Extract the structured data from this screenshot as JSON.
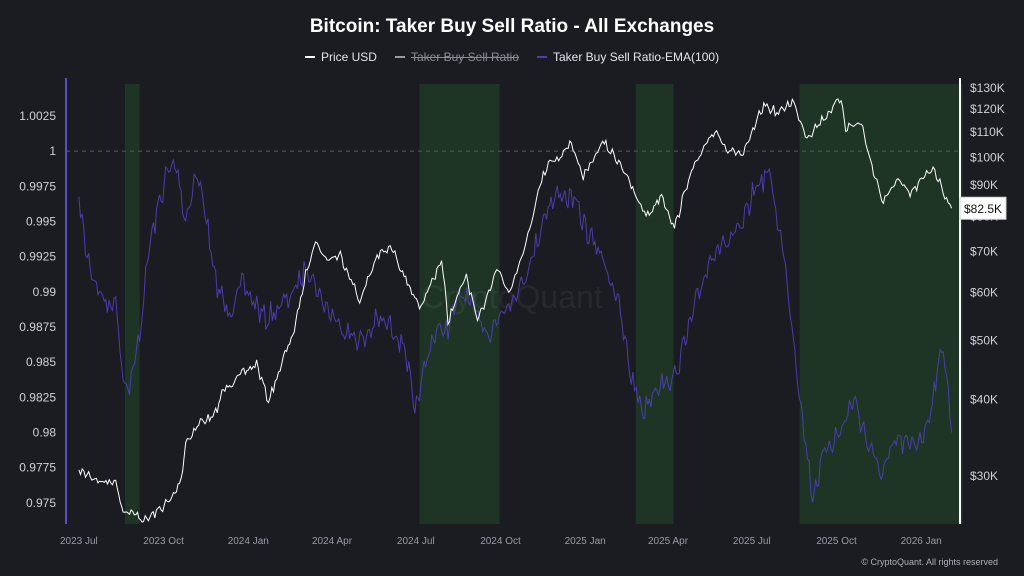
{
  "title": "Bitcoin: Taker Buy Sell Ratio - All Exchanges",
  "legend": [
    {
      "label": "Price USD",
      "color": "#ffffff",
      "hidden": false
    },
    {
      "label": "Taker Buy Sell Ratio",
      "color": "#9a9aa6",
      "hidden": true
    },
    {
      "label": "Taker Buy Sell Ratio-EMA(100)",
      "color": "#4d3fb3",
      "hidden": false
    }
  ],
  "watermark": "CryptoQuant",
  "footer": "© CryptoQuant. All rights reserved",
  "colors": {
    "background": "#1b1b22",
    "price": "#ffffff",
    "ratio": "#4d3fb3",
    "highlight": "#1f3a26",
    "reference": "#5a5a66"
  },
  "chart_data": {
    "type": "line",
    "x_ticks": [
      "2023 Jul",
      "2023 Oct",
      "2024 Jan",
      "2024 Apr",
      "2024 Jul",
      "2024 Oct",
      "2025 Jan",
      "2025 Apr",
      "2025 Jul",
      "2025 Oct",
      "2026 Jan"
    ],
    "left_axis": {
      "label": "",
      "ticks": [
        "1.0025",
        "1",
        "0.9975",
        "0.995",
        "0.9925",
        "0.99",
        "0.9875",
        "0.985",
        "0.9825",
        "0.98",
        "0.9775",
        "0.975"
      ],
      "range": [
        0.9735,
        1.0052
      ]
    },
    "right_axis": {
      "label": "",
      "scale": "log",
      "ticks": [
        "$130K",
        "$120K",
        "$110K",
        "$100K",
        "$90K",
        "$80K",
        "$70K",
        "$60K",
        "$50K",
        "$40K",
        "$30K"
      ],
      "range": [
        25000,
        135000
      ],
      "current_value_label": "$82.5K"
    },
    "reference_line": 1,
    "highlight_periods": [
      [
        "2023-08-20",
        "2023-09-05"
      ],
      [
        "2024-07-05",
        "2024-09-30"
      ],
      [
        "2025-02-25",
        "2025-04-07"
      ],
      [
        "2025-08-22",
        "2026-02-15"
      ]
    ],
    "series": [
      {
        "name": "Price USD",
        "axis": "right",
        "points": [
          [
            "2023-07-01",
            30500
          ],
          [
            "2023-07-10",
            30200
          ],
          [
            "2023-07-25",
            29300
          ],
          [
            "2023-08-10",
            29400
          ],
          [
            "2023-08-18",
            26300
          ],
          [
            "2023-09-01",
            25900
          ],
          [
            "2023-09-11",
            25300
          ],
          [
            "2023-09-25",
            26300
          ],
          [
            "2023-10-10",
            27500
          ],
          [
            "2023-10-20",
            29600
          ],
          [
            "2023-10-25",
            34000
          ],
          [
            "2023-11-10",
            36800
          ],
          [
            "2023-11-25",
            37500
          ],
          [
            "2023-12-05",
            41500
          ],
          [
            "2023-12-20",
            43500
          ],
          [
            "2024-01-10",
            45800
          ],
          [
            "2024-01-23",
            39800
          ],
          [
            "2024-02-10",
            47500
          ],
          [
            "2024-02-20",
            52000
          ],
          [
            "2024-03-05",
            66000
          ],
          [
            "2024-03-14",
            73000
          ],
          [
            "2024-03-25",
            68000
          ],
          [
            "2024-04-10",
            69000
          ],
          [
            "2024-04-20",
            64000
          ],
          [
            "2024-05-01",
            58000
          ],
          [
            "2024-05-20",
            69000
          ],
          [
            "2024-06-05",
            71000
          ],
          [
            "2024-06-25",
            61000
          ],
          [
            "2024-07-05",
            56000
          ],
          [
            "2024-07-29",
            68000
          ],
          [
            "2024-08-05",
            54000
          ],
          [
            "2024-08-25",
            64000
          ],
          [
            "2024-09-06",
            53500
          ],
          [
            "2024-09-27",
            66000
          ],
          [
            "2024-10-10",
            60000
          ],
          [
            "2024-10-29",
            72500
          ],
          [
            "2024-11-11",
            88000
          ],
          [
            "2024-11-22",
            98500
          ],
          [
            "2024-12-05",
            100000
          ],
          [
            "2024-12-17",
            106000
          ],
          [
            "2024-12-30",
            92500
          ],
          [
            "2025-01-20",
            106000
          ],
          [
            "2025-02-10",
            97000
          ],
          [
            "2025-02-25",
            86000
          ],
          [
            "2025-03-10",
            80000
          ],
          [
            "2025-03-25",
            87000
          ],
          [
            "2025-04-08",
            76500
          ],
          [
            "2025-04-25",
            94000
          ],
          [
            "2025-05-10",
            103000
          ],
          [
            "2025-05-22",
            111000
          ],
          [
            "2025-06-05",
            103000
          ],
          [
            "2025-06-22",
            101000
          ],
          [
            "2025-07-14",
            122000
          ],
          [
            "2025-07-30",
            118000
          ],
          [
            "2025-08-14",
            124000
          ],
          [
            "2025-08-30",
            108000
          ],
          [
            "2025-09-15",
            115000
          ],
          [
            "2025-10-06",
            125000
          ],
          [
            "2025-10-11",
            112000
          ],
          [
            "2025-10-28",
            114000
          ],
          [
            "2025-11-05",
            101000
          ],
          [
            "2025-11-21",
            84000
          ],
          [
            "2025-12-05",
            92000
          ],
          [
            "2025-12-20",
            87000
          ],
          [
            "2026-01-14",
            96500
          ],
          [
            "2026-01-25",
            88000
          ],
          [
            "2026-02-03",
            82500
          ]
        ]
      },
      {
        "name": "Taker Buy Sell Ratio-EMA(100)",
        "axis": "left",
        "points": [
          [
            "2023-07-01",
            0.9965
          ],
          [
            "2023-07-10",
            0.9925
          ],
          [
            "2023-07-20",
            0.9905
          ],
          [
            "2023-08-01",
            0.989
          ],
          [
            "2023-08-10",
            0.9895
          ],
          [
            "2023-08-18",
            0.984
          ],
          [
            "2023-08-25",
            0.983
          ],
          [
            "2023-09-05",
            0.987
          ],
          [
            "2023-09-15",
            0.993
          ],
          [
            "2023-09-25",
            0.996
          ],
          [
            "2023-10-05",
            0.9985
          ],
          [
            "2023-10-15",
            0.999
          ],
          [
            "2023-10-25",
            0.995
          ],
          [
            "2023-11-05",
            0.9985
          ],
          [
            "2023-11-15",
            0.996
          ],
          [
            "2023-11-25",
            0.991
          ],
          [
            "2023-12-10",
            0.9885
          ],
          [
            "2023-12-25",
            0.9905
          ],
          [
            "2024-01-05",
            0.9895
          ],
          [
            "2024-01-20",
            0.988
          ],
          [
            "2024-02-05",
            0.989
          ],
          [
            "2024-02-20",
            0.99
          ],
          [
            "2024-03-05",
            0.992
          ],
          [
            "2024-03-20",
            0.9895
          ],
          [
            "2024-04-05",
            0.988
          ],
          [
            "2024-04-20",
            0.987
          ],
          [
            "2024-05-05",
            0.9865
          ],
          [
            "2024-05-20",
            0.988
          ],
          [
            "2024-06-05",
            0.9875
          ],
          [
            "2024-06-20",
            0.986
          ],
          [
            "2024-06-30",
            0.981
          ],
          [
            "2024-07-05",
            0.983
          ],
          [
            "2024-07-20",
            0.987
          ],
          [
            "2024-08-05",
            0.9875
          ],
          [
            "2024-08-20",
            0.99
          ],
          [
            "2024-09-05",
            0.9885
          ],
          [
            "2024-09-20",
            0.987
          ],
          [
            "2024-10-05",
            0.989
          ],
          [
            "2024-10-20",
            0.99
          ],
          [
            "2024-11-05",
            0.9925
          ],
          [
            "2024-11-20",
            0.996
          ],
          [
            "2024-12-05",
            0.997
          ],
          [
            "2024-12-20",
            0.9965
          ],
          [
            "2025-01-05",
            0.994
          ],
          [
            "2025-01-20",
            0.9925
          ],
          [
            "2025-02-05",
            0.9895
          ],
          [
            "2025-02-20",
            0.984
          ],
          [
            "2025-03-05",
            0.9815
          ],
          [
            "2025-03-20",
            0.9835
          ],
          [
            "2025-04-05",
            0.9835
          ],
          [
            "2025-04-20",
            0.9865
          ],
          [
            "2025-05-05",
            0.99
          ],
          [
            "2025-05-20",
            0.993
          ],
          [
            "2025-06-05",
            0.9935
          ],
          [
            "2025-06-20",
            0.9945
          ],
          [
            "2025-07-05",
            0.9975
          ],
          [
            "2025-07-20",
            0.9985
          ],
          [
            "2025-08-05",
            0.9925
          ],
          [
            "2025-08-15",
            0.987
          ],
          [
            "2025-08-25",
            0.981
          ],
          [
            "2025-09-05",
            0.9755
          ],
          [
            "2025-09-20",
            0.979
          ],
          [
            "2025-10-05",
            0.98
          ],
          [
            "2025-10-20",
            0.9825
          ],
          [
            "2025-11-05",
            0.979
          ],
          [
            "2025-11-20",
            0.977
          ],
          [
            "2025-12-05",
            0.9795
          ],
          [
            "2025-12-20",
            0.979
          ],
          [
            "2026-01-05",
            0.98
          ],
          [
            "2026-01-15",
            0.983
          ],
          [
            "2026-01-25",
            0.9865
          ],
          [
            "2026-02-03",
            0.98
          ]
        ]
      }
    ]
  }
}
